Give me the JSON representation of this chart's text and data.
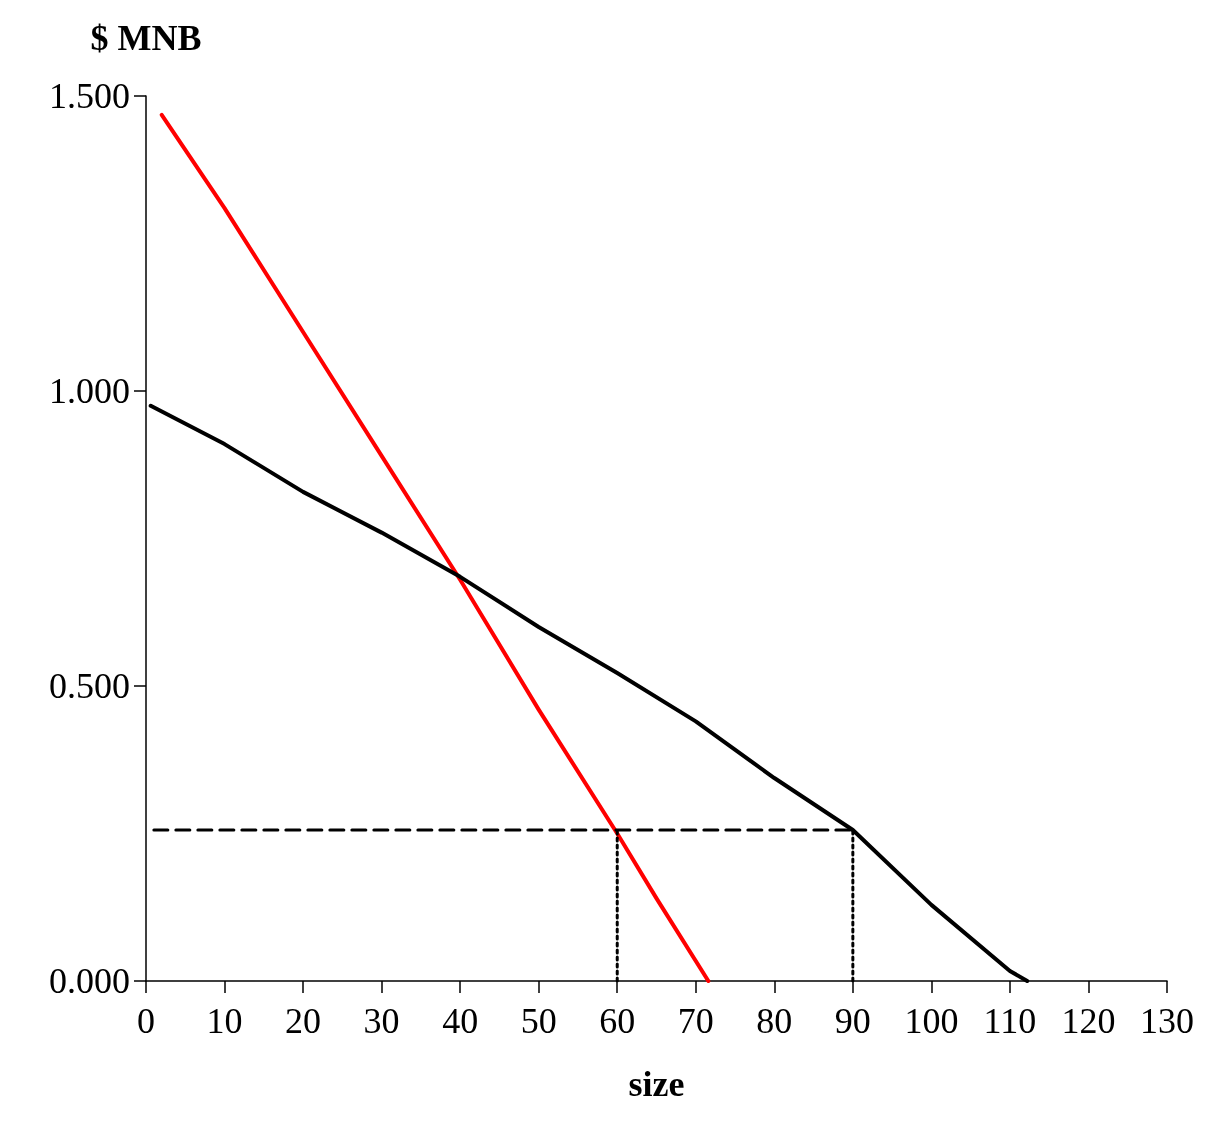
{
  "chart_data": {
    "type": "line",
    "ylabel": "$ MNB",
    "xlabel": "size",
    "xlim": [
      0,
      130
    ],
    "xticks": [
      0,
      10,
      20,
      30,
      40,
      50,
      60,
      70,
      80,
      90,
      100,
      110,
      120,
      130
    ],
    "ylim": [
      0,
      1.5
    ],
    "yticks": [
      {
        "value": 0,
        "label": "0.000"
      },
      {
        "value": 0.5,
        "label": "0.500"
      },
      {
        "value": 1,
        "label": "1.000"
      },
      {
        "value": 1.5,
        "label": "1.500"
      }
    ],
    "marker": "none",
    "series": [
      {
        "color": "#ff0000",
        "x": [
          2,
          10,
          20,
          30,
          40,
          50,
          60,
          65,
          71.6
        ],
        "values": [
          1.468,
          1.31,
          1.1,
          0.89,
          0.68,
          0.46,
          0.25,
          0.14,
          0
        ]
      },
      {
        "color": "#000000",
        "x": [
          0.6,
          10,
          20,
          30,
          40,
          50,
          60,
          70,
          80,
          90,
          100,
          110,
          112.2
        ],
        "values": [
          0.975,
          0.91,
          0.829,
          0.76,
          0.685,
          0.6,
          0.522,
          0.44,
          0.344,
          0.256,
          0.129,
          0.017,
          0
        ]
      },
      {
        "color": "#000000",
        "line_style": "dashed",
        "x": [
          1,
          90
        ],
        "values": [
          0.256,
          0.256
        ]
      },
      {
        "color": "#000000",
        "line_style": "dotted",
        "x": [
          60,
          60
        ],
        "values": [
          0,
          0.256
        ]
      },
      {
        "color": "#000000",
        "line_style": "dotted",
        "x": [
          90,
          90
        ],
        "values": [
          0,
          0.256
        ]
      }
    ]
  }
}
